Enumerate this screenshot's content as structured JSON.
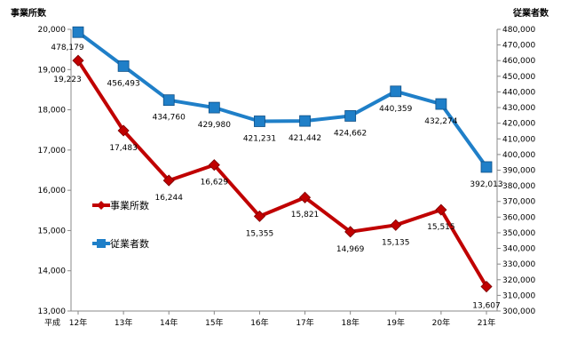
{
  "chart_data": {
    "type": "line",
    "categories": [
      "12年",
      "13年",
      "14年",
      "15年",
      "16年",
      "17年",
      "18年",
      "19年",
      "20年",
      "21年"
    ],
    "x_prefix": "平成",
    "y_left": {
      "label": "事業所数",
      "lim": [
        13000,
        20000
      ],
      "step": 1000
    },
    "y_right": {
      "label": "従業者数",
      "lim": [
        300000,
        480000
      ],
      "step": 10000
    },
    "grid": false,
    "legend_placement": "left-middle",
    "series": [
      {
        "name": "事業所数",
        "axis": "left",
        "color": "#c00000",
        "marker": "diamond",
        "values": [
          19223,
          17483,
          16244,
          16629,
          15355,
          15821,
          14969,
          15135,
          15515,
          13607
        ]
      },
      {
        "name": "従業者数",
        "axis": "right",
        "color": "#1f7fc8",
        "marker": "square",
        "values": [
          478179,
          456493,
          434760,
          429980,
          421231,
          421442,
          424662,
          440359,
          432274,
          392013
        ]
      }
    ]
  }
}
